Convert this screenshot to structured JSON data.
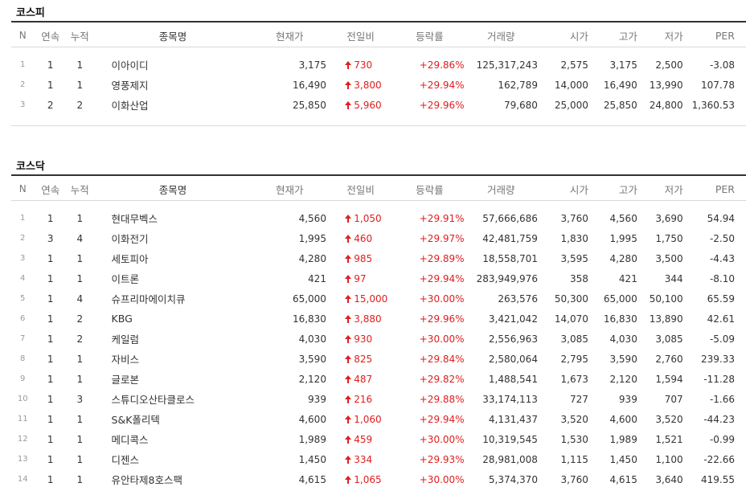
{
  "kospi": {
    "title": "코스피",
    "headers": {
      "n": "N",
      "consecutive": "연속",
      "cumulative": "누적",
      "name": "종목명",
      "price": "현재가",
      "change": "전일비",
      "rate": "등락률",
      "volume": "거래량",
      "open": "시가",
      "high": "고가",
      "low": "저가",
      "per": "PER"
    },
    "rows": [
      {
        "n": "1",
        "consecutive": "1",
        "cumulative": "1",
        "name": "이아이디",
        "price": "3,175",
        "change": "730",
        "rate": "+29.86%",
        "volume": "125,317,243",
        "open": "2,575",
        "high": "3,175",
        "low": "2,500",
        "per": "-3.08"
      },
      {
        "n": "2",
        "consecutive": "1",
        "cumulative": "1",
        "name": "영풍제지",
        "price": "16,490",
        "change": "3,800",
        "rate": "+29.94%",
        "volume": "162,789",
        "open": "14,000",
        "high": "16,490",
        "low": "13,990",
        "per": "107.78"
      },
      {
        "n": "3",
        "consecutive": "2",
        "cumulative": "2",
        "name": "이화산업",
        "price": "25,850",
        "change": "5,960",
        "rate": "+29.96%",
        "volume": "79,680",
        "open": "25,000",
        "high": "25,850",
        "low": "24,800",
        "per": "1,360.53"
      }
    ]
  },
  "kosdaq": {
    "title": "코스닥",
    "headers": {
      "n": "N",
      "consecutive": "연속",
      "cumulative": "누적",
      "name": "종목명",
      "price": "현재가",
      "change": "전일비",
      "rate": "등락률",
      "volume": "거래량",
      "open": "시가",
      "high": "고가",
      "low": "저가",
      "per": "PER"
    },
    "rows": [
      {
        "n": "1",
        "consecutive": "1",
        "cumulative": "1",
        "name": "현대무벡스",
        "price": "4,560",
        "change": "1,050",
        "rate": "+29.91%",
        "volume": "57,666,686",
        "open": "3,760",
        "high": "4,560",
        "low": "3,690",
        "per": "54.94"
      },
      {
        "n": "2",
        "consecutive": "3",
        "cumulative": "4",
        "name": "이화전기",
        "price": "1,995",
        "change": "460",
        "rate": "+29.97%",
        "volume": "42,481,759",
        "open": "1,830",
        "high": "1,995",
        "low": "1,750",
        "per": "-2.50"
      },
      {
        "n": "3",
        "consecutive": "1",
        "cumulative": "1",
        "name": "세토피아",
        "price": "4,280",
        "change": "985",
        "rate": "+29.89%",
        "volume": "18,558,701",
        "open": "3,595",
        "high": "4,280",
        "low": "3,500",
        "per": "-4.43"
      },
      {
        "n": "4",
        "consecutive": "1",
        "cumulative": "1",
        "name": "이트론",
        "price": "421",
        "change": "97",
        "rate": "+29.94%",
        "volume": "283,949,976",
        "open": "358",
        "high": "421",
        "low": "344",
        "per": "-8.10"
      },
      {
        "n": "5",
        "consecutive": "1",
        "cumulative": "4",
        "name": "슈프리마에이치큐",
        "price": "65,000",
        "change": "15,000",
        "rate": "+30.00%",
        "volume": "263,576",
        "open": "50,300",
        "high": "65,000",
        "low": "50,100",
        "per": "65.59"
      },
      {
        "n": "6",
        "consecutive": "1",
        "cumulative": "2",
        "name": "KBG",
        "price": "16,830",
        "change": "3,880",
        "rate": "+29.96%",
        "volume": "3,421,042",
        "open": "14,070",
        "high": "16,830",
        "low": "13,890",
        "per": "42.61"
      },
      {
        "n": "7",
        "consecutive": "1",
        "cumulative": "2",
        "name": "케일럼",
        "price": "4,030",
        "change": "930",
        "rate": "+30.00%",
        "volume": "2,556,963",
        "open": "3,085",
        "high": "4,030",
        "low": "3,085",
        "per": "-5.09"
      },
      {
        "n": "8",
        "consecutive": "1",
        "cumulative": "1",
        "name": "자비스",
        "price": "3,590",
        "change": "825",
        "rate": "+29.84%",
        "volume": "2,580,064",
        "open": "2,795",
        "high": "3,590",
        "low": "2,760",
        "per": "239.33"
      },
      {
        "n": "9",
        "consecutive": "1",
        "cumulative": "1",
        "name": "글로본",
        "price": "2,120",
        "change": "487",
        "rate": "+29.82%",
        "volume": "1,488,541",
        "open": "1,673",
        "high": "2,120",
        "low": "1,594",
        "per": "-11.28"
      },
      {
        "n": "10",
        "consecutive": "1",
        "cumulative": "3",
        "name": "스튜디오산타클로스",
        "price": "939",
        "change": "216",
        "rate": "+29.88%",
        "volume": "33,174,113",
        "open": "727",
        "high": "939",
        "low": "707",
        "per": "-1.66"
      },
      {
        "n": "11",
        "consecutive": "1",
        "cumulative": "1",
        "name": "S&K폴리텍",
        "price": "4,600",
        "change": "1,060",
        "rate": "+29.94%",
        "volume": "4,131,437",
        "open": "3,520",
        "high": "4,600",
        "low": "3,520",
        "per": "-44.23"
      },
      {
        "n": "12",
        "consecutive": "1",
        "cumulative": "1",
        "name": "메디콕스",
        "price": "1,989",
        "change": "459",
        "rate": "+30.00%",
        "volume": "10,319,545",
        "open": "1,530",
        "high": "1,989",
        "low": "1,521",
        "per": "-0.99"
      },
      {
        "n": "13",
        "consecutive": "1",
        "cumulative": "1",
        "name": "디젠스",
        "price": "1,450",
        "change": "334",
        "rate": "+29.93%",
        "volume": "28,981,008",
        "open": "1,115",
        "high": "1,450",
        "low": "1,100",
        "per": "-22.66"
      },
      {
        "n": "14",
        "consecutive": "1",
        "cumulative": "1",
        "name": "유안타제8호스팩",
        "price": "4,615",
        "change": "1,065",
        "rate": "+30.00%",
        "volume": "5,374,370",
        "open": "3,760",
        "high": "4,615",
        "low": "3,640",
        "per": "419.55"
      }
    ]
  },
  "colors": {
    "up": "#e01e1e",
    "header_line": "#333333",
    "divider": "#d9d9d9"
  },
  "icons": {
    "change_up": "up-arrow-icon"
  }
}
